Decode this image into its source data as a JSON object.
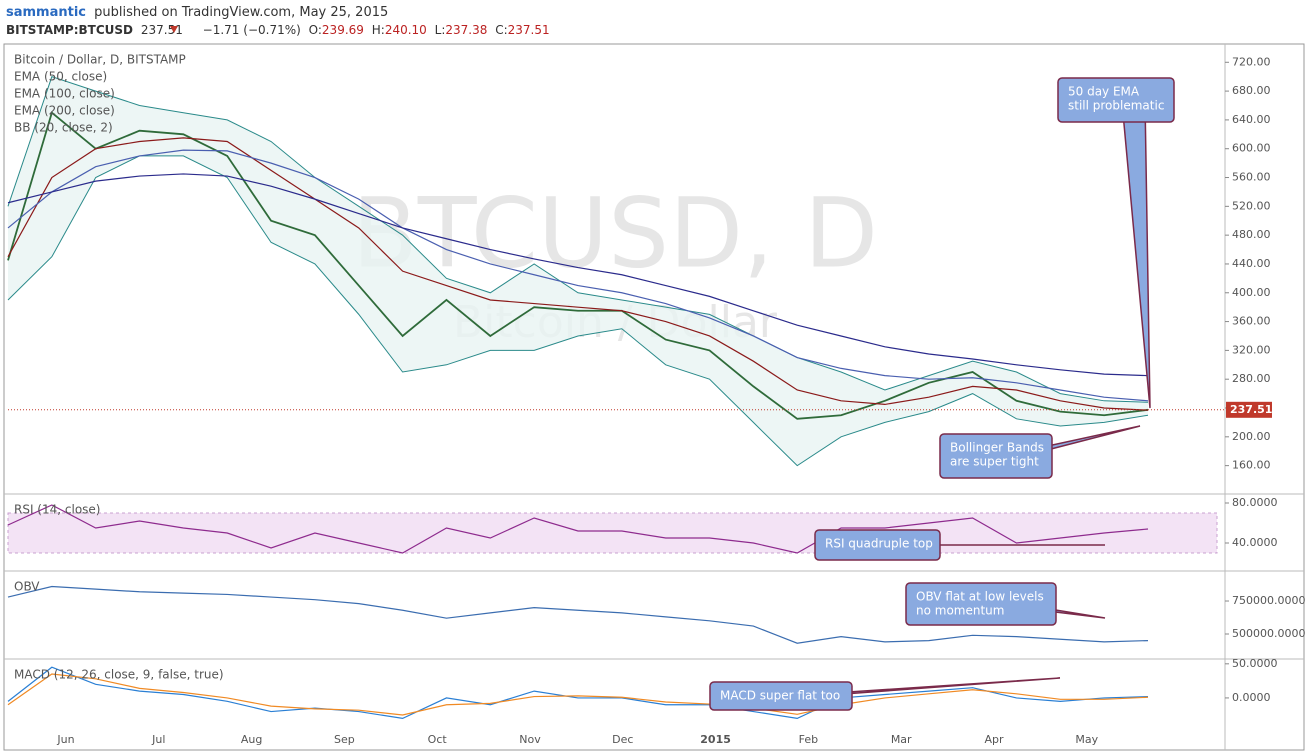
{
  "header": {
    "user": "sammantic",
    "published": "published on TradingView.com, May 25, 2015",
    "symbol": "BITSTAMP:BTCUSD",
    "price": "237.51",
    "change": "−1.71 (−0.71%)",
    "o_label": "O:",
    "o": "239.69",
    "h_label": "H:",
    "h": "240.10",
    "l_label": "L:",
    "l": "237.38",
    "c_label": "C:",
    "c": "237.51"
  },
  "chart_data": [
    {
      "type": "line",
      "title": "Bitcoin / Dollar, D, BITSTAMP",
      "watermark": [
        "BTCUSD, D",
        "Bitcoin / Dollar"
      ],
      "x_labels": [
        "Jun",
        "Jul",
        "Aug",
        "Sep",
        "Oct",
        "Nov",
        "Dec",
        "2015",
        "Feb",
        "Mar",
        "Apr",
        "May"
      ],
      "ylim": [
        122,
        744
      ],
      "yticks": [
        {
          "value": 160,
          "label": "160.00"
        },
        {
          "value": 200,
          "label": "200.00"
        },
        {
          "value": 240,
          "label": "240.00"
        },
        {
          "value": 280,
          "label": "280.00"
        },
        {
          "value": 320,
          "label": "320.00"
        },
        {
          "value": 360,
          "label": "360.00"
        },
        {
          "value": 400,
          "label": "400.00"
        },
        {
          "value": 440,
          "label": "440.00"
        },
        {
          "value": 480,
          "label": "480.00"
        },
        {
          "value": 520,
          "label": "520.00"
        },
        {
          "value": 560,
          "label": "560.00"
        },
        {
          "value": 600,
          "label": "600.00"
        },
        {
          "value": 640,
          "label": "640.00"
        },
        {
          "value": 680,
          "label": "680.00"
        },
        {
          "value": 720,
          "label": "720.00"
        }
      ],
      "last_price": {
        "value": 237.51,
        "label": "237.51"
      },
      "series": [
        {
          "color": "#2f6b3a",
          "values": [
            445,
            650,
            600,
            625,
            620,
            590,
            500,
            480,
            410,
            340,
            390,
            340,
            380,
            375,
            375,
            335,
            320,
            270,
            225,
            230,
            250,
            275,
            290,
            250,
            235,
            230,
            237.51
          ]
        },
        {
          "name": "EMA (50, close)",
          "color": "#8b1a1a",
          "values": [
            450,
            560,
            600,
            610,
            615,
            610,
            570,
            530,
            490,
            430,
            410,
            390,
            385,
            380,
            375,
            360,
            340,
            305,
            265,
            250,
            245,
            255,
            270,
            265,
            250,
            240,
            237
          ]
        },
        {
          "name": "EMA (100, close)",
          "color": "#4a5fb0",
          "values": [
            490,
            540,
            575,
            590,
            598,
            597,
            580,
            560,
            530,
            490,
            460,
            440,
            425,
            410,
            400,
            385,
            365,
            340,
            310,
            295,
            285,
            280,
            282,
            275,
            265,
            255,
            250
          ]
        },
        {
          "name": "EMA (200, close)",
          "color": "#2b2b8c",
          "values": [
            525,
            540,
            555,
            562,
            565,
            562,
            548,
            530,
            510,
            490,
            475,
            460,
            447,
            435,
            425,
            410,
            395,
            375,
            355,
            340,
            325,
            315,
            308,
            300,
            293,
            287,
            285
          ]
        }
      ],
      "bands": {
        "name": "BB (20, close, 2)",
        "color": "#2a8a8a",
        "upper": [
          520,
          700,
          680,
          660,
          650,
          640,
          610,
          560,
          520,
          480,
          420,
          400,
          440,
          400,
          390,
          380,
          370,
          340,
          310,
          290,
          265,
          285,
          305,
          290,
          260,
          250,
          248
        ],
        "lower": [
          390,
          450,
          560,
          590,
          590,
          560,
          470,
          440,
          370,
          290,
          300,
          320,
          320,
          340,
          350,
          300,
          280,
          220,
          160,
          200,
          220,
          235,
          260,
          225,
          215,
          220,
          230
        ]
      },
      "annotations": [
        {
          "lines": [
            "50 day EMA",
            "still problematic"
          ]
        },
        {
          "lines": [
            "Bollinger Bands",
            "are super tight"
          ]
        }
      ]
    },
    {
      "type": "line",
      "title": "RSI (14, close)",
      "ylim": [
        13,
        88
      ],
      "yticks": [
        {
          "value": 40,
          "label": "40.0000"
        },
        {
          "value": 80,
          "label": "80.0000"
        }
      ],
      "band": [
        30,
        70
      ],
      "series": [
        {
          "color": "#8e2b8e",
          "values": [
            58,
            78,
            55,
            62,
            55,
            50,
            35,
            50,
            40,
            30,
            55,
            45,
            65,
            52,
            52,
            45,
            45,
            40,
            30,
            55,
            55,
            60,
            65,
            40,
            45,
            50,
            54
          ]
        }
      ],
      "annotations": [
        {
          "lines": [
            "RSI quadruple top"
          ]
        }
      ]
    },
    {
      "type": "line",
      "title": "OBV",
      "ylim": [
        318000,
        970000
      ],
      "yticks": [
        {
          "value": 500000,
          "label": "500000.0000"
        },
        {
          "value": 750000,
          "label": "750000.0000"
        }
      ],
      "series": [
        {
          "color": "#3b6db0",
          "values": [
            780000,
            860000,
            840000,
            820000,
            810000,
            800000,
            780000,
            760000,
            730000,
            680000,
            620000,
            660000,
            700000,
            680000,
            660000,
            630000,
            600000,
            560000,
            430000,
            480000,
            440000,
            450000,
            490000,
            480000,
            460000,
            440000,
            450000
          ]
        }
      ],
      "annotations": [
        {
          "lines": [
            "OBV flat at low levels",
            "no momentum"
          ]
        }
      ]
    },
    {
      "type": "line",
      "title": "MACD (12, 26, close, 9, false, true)",
      "ylim": [
        -69,
        55.6
      ],
      "yticks": [
        {
          "value": 0,
          "label": "0.0000"
        },
        {
          "value": 50,
          "label": "50.0000"
        }
      ],
      "series": [
        {
          "color": "#2a7fd4",
          "values": [
            -5,
            45,
            20,
            10,
            5,
            -5,
            -20,
            -15,
            -20,
            -30,
            0,
            -10,
            10,
            0,
            0,
            -10,
            -10,
            -20,
            -30,
            0,
            5,
            10,
            15,
            0,
            -5,
            0,
            2
          ]
        },
        {
          "color": "#f08a24",
          "values": [
            -10,
            35,
            28,
            14,
            8,
            0,
            -12,
            -16,
            -18,
            -25,
            -10,
            -8,
            2,
            3,
            1,
            -6,
            -9,
            -15,
            -24,
            -10,
            0,
            6,
            12,
            6,
            -2,
            -2,
            1
          ]
        }
      ],
      "annotations": [
        {
          "lines": [
            "MACD super flat too"
          ]
        }
      ]
    }
  ]
}
